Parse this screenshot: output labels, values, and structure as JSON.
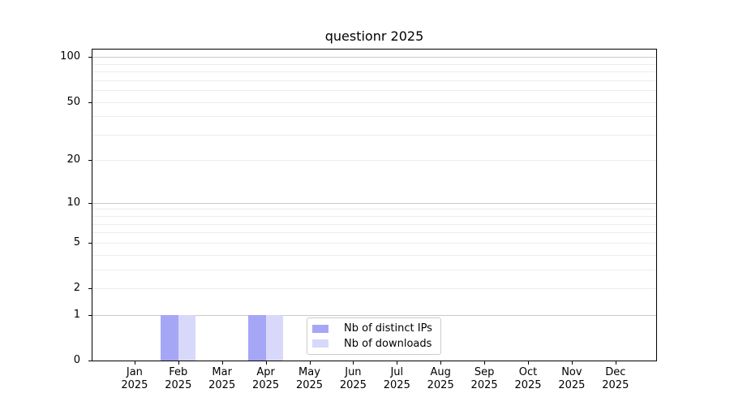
{
  "colors": {
    "background": "#ffffff",
    "axis": "#000000",
    "text": "#000000",
    "grid_major": "#c9c9c9",
    "grid_minor": "#ececec",
    "legend_border": "#cccccc",
    "legend_background": "#ffffff"
  },
  "chart_data": {
    "type": "bar",
    "title": "questionr 2025",
    "x": [
      "Jan",
      "Feb",
      "Mar",
      "Apr",
      "May",
      "Jun",
      "Jul",
      "Aug",
      "Sep",
      "Oct",
      "Nov",
      "Dec"
    ],
    "x_year": "2025",
    "categories": [
      "Jan 2025",
      "Feb 2025",
      "Mar 2025",
      "Apr 2025",
      "May 2025",
      "Jun 2025",
      "Jul 2025",
      "Aug 2025",
      "Sep 2025",
      "Oct 2025",
      "Nov 2025",
      "Dec 2025"
    ],
    "series": [
      {
        "name": "Nb of distinct IPs",
        "color": "#a6a6f7",
        "values": [
          0,
          1,
          0,
          1,
          0,
          0,
          0,
          0,
          0,
          0,
          0,
          0
        ]
      },
      {
        "name": "Nb of downloads",
        "color": "#d8d8fa",
        "values": [
          0,
          1,
          0,
          1,
          0,
          0,
          0,
          0,
          0,
          0,
          0,
          0
        ]
      }
    ],
    "xlabel": "",
    "ylabel": "",
    "yscale": "log1p",
    "yticks": [
      0,
      1,
      2,
      5,
      10,
      20,
      50,
      100
    ],
    "y_major_gridlines": [
      1,
      10,
      100
    ],
    "y_minor_gridlines": [
      2,
      3,
      4,
      5,
      6,
      7,
      8,
      9,
      20,
      30,
      40,
      50,
      60,
      70,
      80,
      90
    ],
    "ylim": [
      0,
      115
    ],
    "grid": "both",
    "legend_position": "lower center inside"
  }
}
